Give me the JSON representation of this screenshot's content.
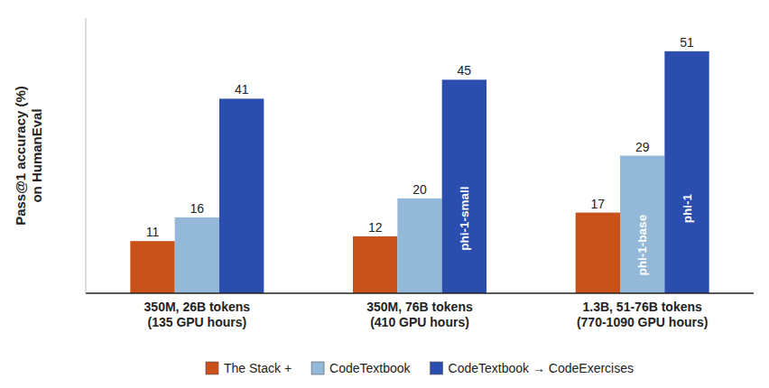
{
  "chart_data": {
    "type": "bar",
    "categories": [
      "350M, 26B tokens\n(135 GPU hours)",
      "350M, 76B tokens\n(410 GPU hours)",
      "1.3B, 51-76B tokens\n(770-1090 GPU hours)"
    ],
    "series": [
      {
        "name": "The Stack +",
        "color": "#C8521A",
        "values": [
          11,
          12,
          17
        ]
      },
      {
        "name": "CodeTextbook",
        "color": "#93B8D8",
        "values": [
          16,
          20,
          29
        ]
      },
      {
        "name": "CodeTextbook → CodeExercises",
        "color": "#2B4DAE",
        "values": [
          41,
          45,
          51
        ]
      }
    ],
    "y_label": "Pass@1 accuracy (%)\non HumanEval",
    "ylim": [
      0,
      58
    ],
    "tick_labels": "x",
    "data_labels": true,
    "grid": false,
    "legend": "bottom",
    "annotations": [
      {
        "text": "phi-1-small",
        "series": 2,
        "index": 1
      },
      {
        "text": "phi-1-base",
        "series": 1,
        "index": 2
      },
      {
        "text": "phi-1",
        "series": 2,
        "index": 2
      }
    ]
  }
}
